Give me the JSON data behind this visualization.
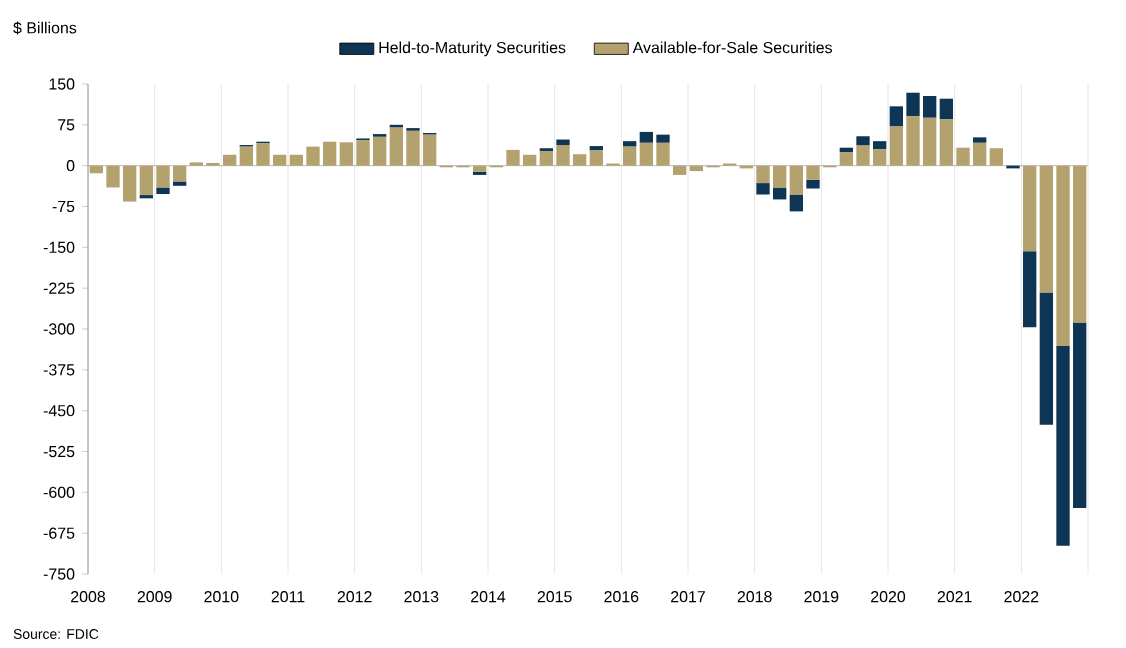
{
  "chart_data": {
    "type": "bar",
    "stacked": true,
    "ylabel": "$ Billions",
    "x": [
      2008.125,
      2008.375,
      2008.625,
      2008.875,
      2009.125,
      2009.375,
      2009.625,
      2009.875,
      2010.125,
      2010.375,
      2010.625,
      2010.875,
      2011.125,
      2011.375,
      2011.625,
      2011.875,
      2012.125,
      2012.375,
      2012.625,
      2012.875,
      2013.125,
      2013.375,
      2013.625,
      2013.875,
      2014.125,
      2014.375,
      2014.625,
      2014.875,
      2015.125,
      2015.375,
      2015.625,
      2015.875,
      2016.125,
      2016.375,
      2016.625,
      2016.875,
      2017.125,
      2017.375,
      2017.625,
      2017.875,
      2018.125,
      2018.375,
      2018.625,
      2018.875,
      2019.125,
      2019.375,
      2019.625,
      2019.875,
      2020.125,
      2020.375,
      2020.625,
      2020.875,
      2021.125,
      2021.375,
      2021.625,
      2021.875,
      2022.125,
      2022.375,
      2022.625,
      2022.875
    ],
    "series": [
      {
        "name": "Available-for-Sale Securities",
        "color": "#b3a16e",
        "values": [
          -14,
          -40,
          -66,
          -54,
          -40,
          -29,
          6,
          5,
          20,
          35,
          41,
          20,
          20,
          35,
          44,
          43,
          47,
          53,
          70,
          64,
          57,
          -3,
          -3,
          -11,
          -3,
          29,
          20,
          27,
          38,
          21,
          28,
          4,
          35,
          42,
          42,
          -17,
          -10,
          -3,
          4,
          -5,
          -32,
          -41,
          -53,
          -26,
          -3,
          25,
          37,
          30,
          72,
          91,
          88,
          85,
          33,
          42,
          32,
          null,
          -157,
          -233,
          -331,
          -288
        ]
      },
      {
        "name": "Held-to-Maturity Securities",
        "color": "#0f3554",
        "values": [
          0,
          0,
          0,
          -6,
          -12,
          -8,
          0,
          0,
          0,
          3,
          3,
          0,
          0,
          0,
          0,
          0,
          3,
          5,
          5,
          5,
          3,
          0,
          0,
          -6,
          0,
          0,
          0,
          5,
          10,
          0,
          8,
          0,
          10,
          20,
          15,
          0,
          0,
          0,
          0,
          0,
          -21,
          -21,
          -31,
          -16,
          0,
          8,
          17,
          15,
          37,
          43,
          40,
          38,
          0,
          10,
          0,
          -5,
          -140,
          -243,
          -367,
          -341
        ]
      }
    ],
    "xlim": [
      2008,
      2023
    ],
    "xticks": [
      2008,
      2009,
      2010,
      2011,
      2012,
      2013,
      2014,
      2015,
      2016,
      2017,
      2018,
      2019,
      2020,
      2021,
      2022,
      {
        "value": 2023,
        "label": null
      }
    ],
    "ylim": [
      -750,
      150
    ],
    "yticks": [
      150,
      75,
      0,
      -75,
      -150,
      -225,
      -300,
      -375,
      -450,
      -525,
      -600,
      -675,
      -750
    ],
    "grid": "x",
    "legend": "top",
    "annotations": [
      "Source: FDIC"
    ]
  }
}
